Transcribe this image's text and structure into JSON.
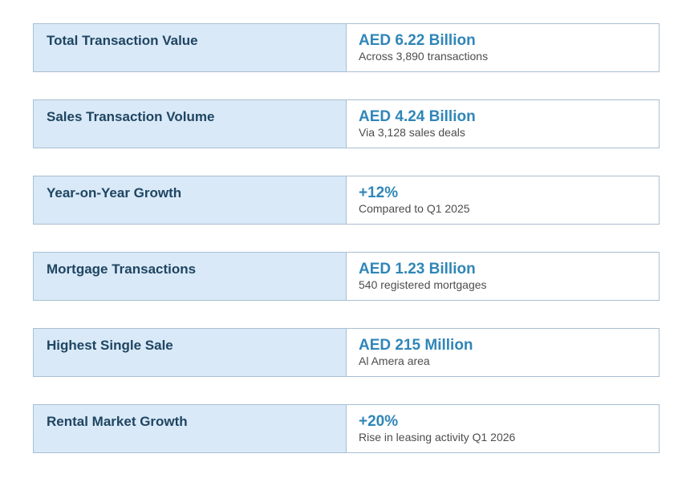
{
  "stats": [
    {
      "label": "Total Transaction Value",
      "value": "AED 6.22 Billion",
      "note": "Across 3,890 transactions"
    },
    {
      "label": "Sales Transaction Volume",
      "value": "AED 4.24 Billion",
      "note": "Via 3,128 sales deals"
    },
    {
      "label": "Year-on-Year Growth",
      "value": "+12%",
      "note": "Compared to Q1 2025"
    },
    {
      "label": "Mortgage Transactions",
      "value": "AED 1.23 Billion",
      "note": "540 registered mortgages"
    },
    {
      "label": "Highest Single Sale",
      "value": "AED 215 Million",
      "note": "Al Amera area"
    },
    {
      "label": "Rental Market Growth",
      "value": "+20%",
      "note": "Rise in leasing activity Q1 2026"
    }
  ],
  "colors": {
    "label_background": "#d9e9f7",
    "label_text": "#1f4562",
    "value_text": "#2f86b8",
    "note_text": "#4d4d4d",
    "border": "#a9bfd2"
  }
}
